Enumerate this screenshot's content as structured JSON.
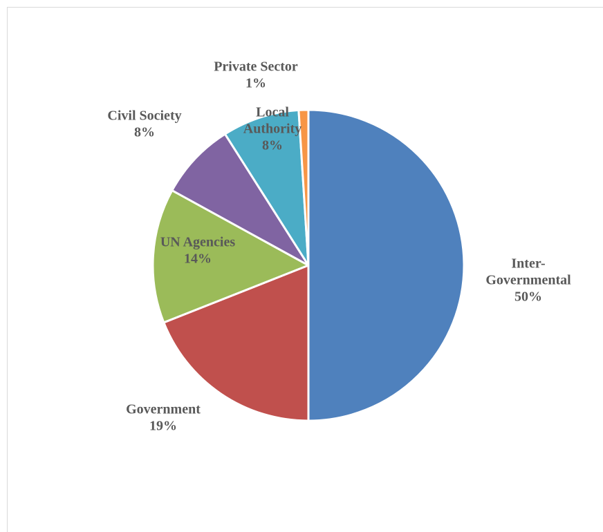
{
  "chart_data": {
    "type": "pie",
    "title": "",
    "legend": "none",
    "slices": [
      {
        "label": "Inter-Governmental",
        "label_lines": [
          "Inter-",
          "Governmental"
        ],
        "value": 50,
        "value_label": "50%",
        "color": "#4F81BD"
      },
      {
        "label": "Government",
        "label_lines": [
          "Government"
        ],
        "value": 19,
        "value_label": "19%",
        "color": "#C0504D"
      },
      {
        "label": "UN Agencies",
        "label_lines": [
          "UN Agencies"
        ],
        "value": 14,
        "value_label": "14%",
        "color": "#9BBB59"
      },
      {
        "label": "Civil Society",
        "label_lines": [
          "Civil Society"
        ],
        "value": 8,
        "value_label": "8%",
        "color": "#8064A2"
      },
      {
        "label": "Local Authority",
        "label_lines": [
          "Local",
          "Authority"
        ],
        "value": 8,
        "value_label": "8%",
        "color": "#4BACC6"
      },
      {
        "label": "Private Sector",
        "label_lines": [
          "Private Sector"
        ],
        "value": 1,
        "value_label": "1%",
        "color": "#F79646"
      }
    ]
  }
}
